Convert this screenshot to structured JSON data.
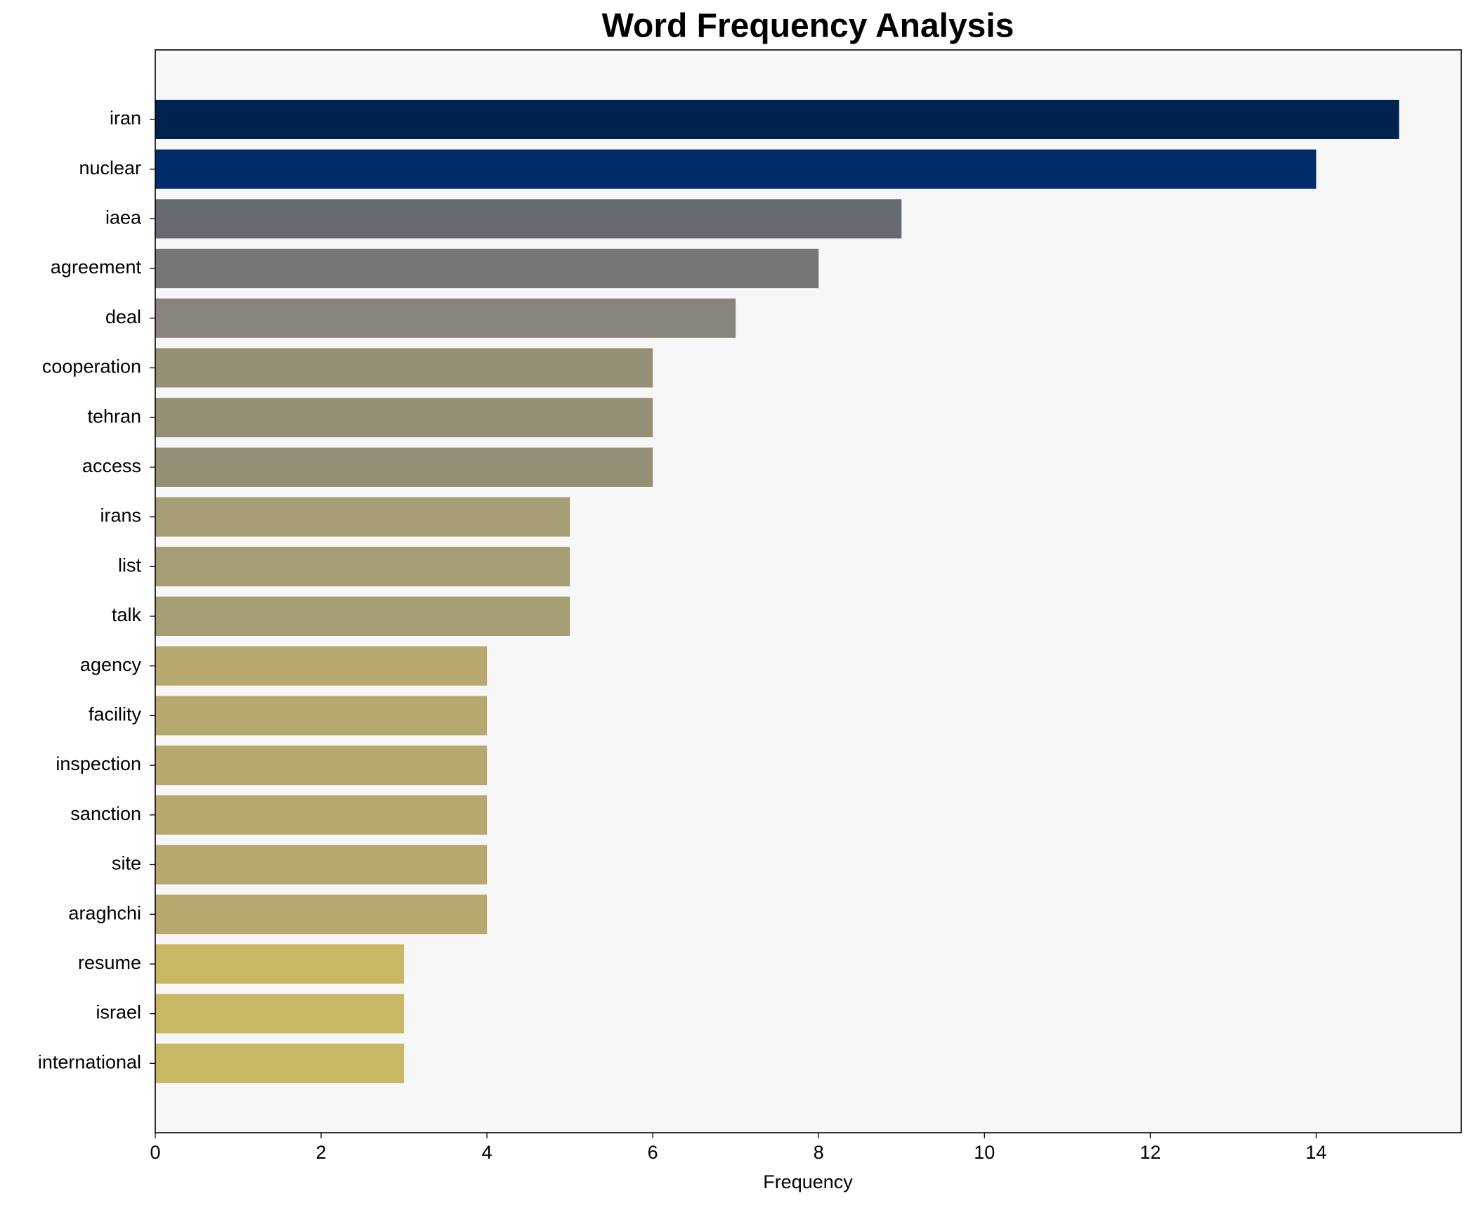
{
  "chart_data": {
    "type": "barh",
    "title": "Word Frequency Analysis",
    "xlabel": "Frequency",
    "categories": [
      "iran",
      "nuclear",
      "iaea",
      "agreement",
      "deal",
      "cooperation",
      "tehran",
      "access",
      "irans",
      "list",
      "talk",
      "agency",
      "facility",
      "inspection",
      "sanction",
      "site",
      "araghchi",
      "resume",
      "israel",
      "international"
    ],
    "values": [
      15,
      14,
      9,
      8,
      7,
      6,
      6,
      6,
      5,
      5,
      5,
      4,
      4,
      4,
      4,
      4,
      4,
      3,
      3,
      3
    ],
    "colors": [
      "#00224e",
      "#002b6a",
      "#666970",
      "#767676",
      "#88847b",
      "#958f76",
      "#958f76",
      "#958f76",
      "#a59d73",
      "#a59d73",
      "#a59d73",
      "#b6a86f",
      "#b6a86f",
      "#b6a86f",
      "#b6a86f",
      "#b6a86f",
      "#b6a86f",
      "#c8b866",
      "#c8b866",
      "#c8b866"
    ],
    "xlim": [
      0,
      15.75
    ],
    "xticks": [
      0,
      2,
      4,
      6,
      8,
      10,
      12,
      14
    ]
  }
}
